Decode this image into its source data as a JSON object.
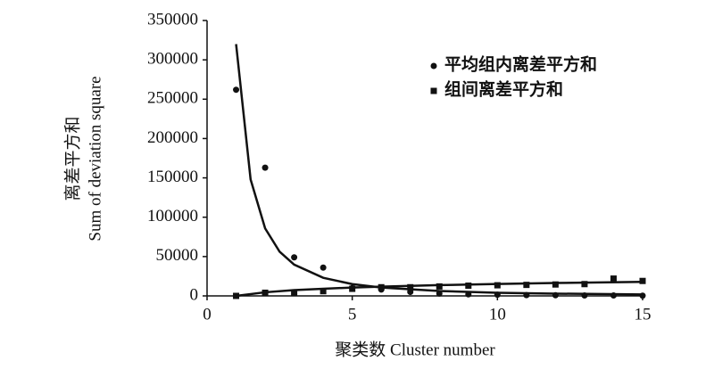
{
  "chart_data": {
    "type": "scatter",
    "xlabel": "聚类数 Cluster number",
    "ylabel": [
      "离差平方和",
      "Sum of deviation square"
    ],
    "xlim": [
      0,
      15
    ],
    "xticks": [
      0,
      5,
      10,
      15
    ],
    "ylim": [
      0,
      350000
    ],
    "yticks": [
      0,
      50000,
      100000,
      150000,
      200000,
      250000,
      300000,
      350000
    ],
    "legend": "upper right",
    "series": [
      {
        "name": "平均组内离差平方和",
        "marker": "circle",
        "color": "#111111",
        "x": [
          1,
          2,
          3,
          4,
          5,
          6,
          7,
          8,
          9,
          10,
          11,
          12,
          13,
          14,
          15
        ],
        "values": [
          262000,
          163000,
          49000,
          36000,
          10000,
          8000,
          5000,
          3000,
          2000,
          1500,
          1000,
          800,
          600,
          500,
          300
        ],
        "trend": {
          "x": [
            1,
            1.5,
            2,
            2.5,
            3,
            4,
            5,
            6,
            8,
            10,
            12,
            15
          ],
          "values": [
            320000,
            148000,
            85800,
            56100,
            39700,
            23000,
            15000,
            10600,
            6200,
            4000,
            2900,
            1900
          ]
        }
      },
      {
        "name": "组间离差平方和",
        "marker": "square",
        "color": "#111111",
        "x": [
          1,
          2,
          3,
          4,
          5,
          6,
          7,
          8,
          9,
          10,
          11,
          12,
          13,
          14,
          15
        ],
        "values": [
          0,
          4000,
          4000,
          6000,
          9000,
          11000,
          11000,
          12000,
          13000,
          13500,
          14000,
          14500,
          15000,
          22000,
          19000
        ],
        "trend": {
          "x": [
            1,
            2,
            3,
            4,
            5,
            6,
            8,
            10,
            12,
            15
          ],
          "values": [
            0,
            4600,
            7300,
            9100,
            10600,
            11800,
            13700,
            15200,
            16400,
            17900
          ]
        }
      }
    ]
  }
}
